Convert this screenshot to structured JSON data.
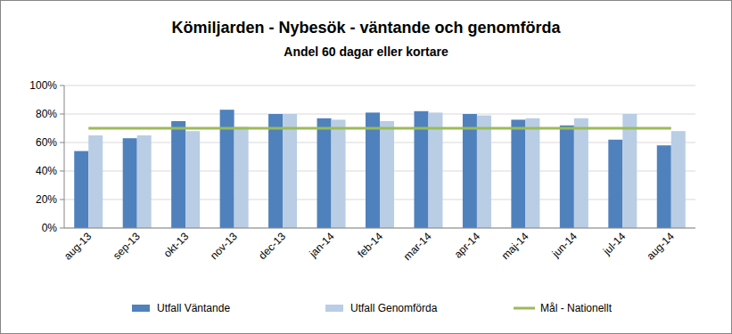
{
  "chart_data": {
    "type": "bar",
    "title": "Kömiljarden - Nybesök - väntande och genomförda",
    "subtitle": "Andel  60 dagar eller kortare",
    "categories": [
      "aug-13",
      "sep-13",
      "okt-13",
      "nov-13",
      "dec-13",
      "jan-14",
      "feb-14",
      "mar-14",
      "apr-14",
      "maj-14",
      "jun-14",
      "jul-14",
      "aug-14"
    ],
    "series": [
      {
        "name": "Utfall Väntande",
        "type": "bar",
        "color": "#4f81bd",
        "values": [
          54,
          63,
          75,
          83,
          80,
          77,
          81,
          82,
          80,
          76,
          72,
          62,
          58
        ]
      },
      {
        "name": "Utfall Genomförda",
        "type": "bar",
        "color": "#b9cde5",
        "values": [
          65,
          65,
          68,
          71,
          80,
          76,
          75,
          81,
          79,
          77,
          77,
          80,
          68
        ]
      },
      {
        "name": "Mål - Nationellt",
        "type": "line",
        "color": "#9bbb59",
        "values": [
          70,
          70,
          70,
          70,
          70,
          70,
          70,
          70,
          70,
          70,
          70,
          70,
          70
        ]
      }
    ],
    "ylim": [
      0,
      100
    ],
    "yticks": [
      {
        "value": 0,
        "label": "0%"
      },
      {
        "value": 20,
        "label": "20%"
      },
      {
        "value": 40,
        "label": "40%"
      },
      {
        "value": 60,
        "label": "60%"
      },
      {
        "value": 80,
        "label": "80%"
      },
      {
        "value": 100,
        "label": "100%"
      }
    ],
    "grid": true,
    "legend": "bottom"
  }
}
